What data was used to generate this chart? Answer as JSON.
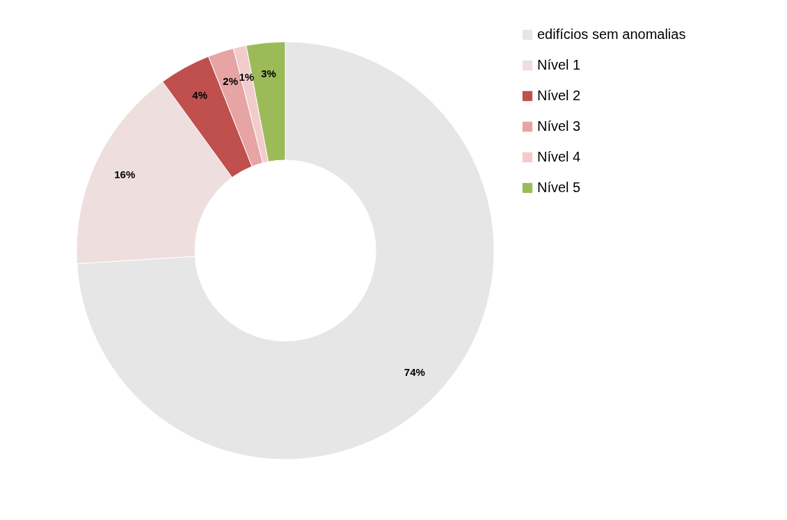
{
  "chart_data": {
    "type": "donut",
    "categories": [
      "edifícios sem anomalias",
      "Nível 1",
      "Nível 2",
      "Nível 3",
      "Nível 4",
      "Nível 5"
    ],
    "values": [
      74,
      16,
      4,
      2,
      1,
      3
    ],
    "colors": [
      "#e6e6e6",
      "#eedede",
      "#c0504d",
      "#e6a4a4",
      "#f2cccc",
      "#9bbb59"
    ],
    "value_labels": [
      "74%",
      "16%",
      "4%",
      "2%",
      "1%",
      "3%"
    ],
    "legend": "right"
  }
}
